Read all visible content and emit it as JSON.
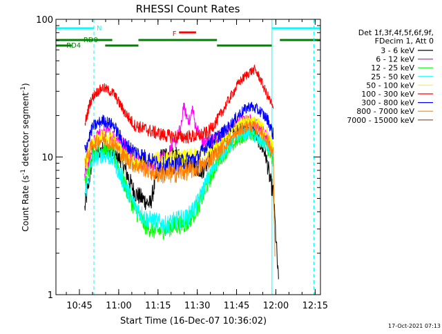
{
  "chart_data": {
    "type": "line",
    "title": "RHESSI Count Rates",
    "xlabel": "Start Time (16-Dec-07 10:36:02)",
    "ylabel": "Count Rate (s⁻¹ detector segment⁻¹)",
    "ylabel_parts": [
      "Count Rate (s",
      "-1",
      " detector segment",
      "-1",
      ")"
    ],
    "yscale": "log",
    "ylim": [
      1,
      100
    ],
    "xlim_minutes": [
      0,
      101
    ],
    "x_ticks": [
      {
        "label": "10:45",
        "minutes": 8.97
      },
      {
        "label": "11:00",
        "minutes": 23.97
      },
      {
        "label": "11:15",
        "minutes": 38.97
      },
      {
        "label": "11:30",
        "minutes": 53.97
      },
      {
        "label": "11:45",
        "minutes": 68.97
      },
      {
        "label": "12:00",
        "minutes": 83.97
      },
      {
        "label": "12:15",
        "minutes": 98.97
      }
    ],
    "y_ticks": [
      {
        "label": "1",
        "value": 1
      },
      {
        "label": "10",
        "value": 10
      },
      {
        "label": "100",
        "value": 100
      }
    ],
    "legend_header": [
      "Det 1f,3f,4f,5f,6f,9f,",
      "FDecim 1, Att 0"
    ],
    "legend_position": "right",
    "timestamp": "17-Oct-2021 07:13",
    "series": [
      {
        "name": "3 - 6 keV",
        "color": "#000000",
        "points": [
          [
            11,
            4.2
          ],
          [
            14,
            10
          ],
          [
            18,
            11.5
          ],
          [
            25,
            9.5
          ],
          [
            30,
            5.5
          ],
          [
            36,
            4.5
          ],
          [
            40,
            10
          ],
          [
            44,
            11
          ],
          [
            50,
            9
          ],
          [
            56,
            8
          ],
          [
            61,
            12
          ],
          [
            66,
            15
          ],
          [
            70,
            16.5
          ],
          [
            75,
            16
          ],
          [
            80,
            10.5
          ],
          [
            82,
            6.5
          ],
          [
            83,
            5.5
          ],
          [
            85,
            1.2
          ]
        ]
      },
      {
        "name": "6 - 12 keV",
        "color": "#ff00ff",
        "points": [
          [
            11,
            7.5
          ],
          [
            15,
            13.8
          ],
          [
            19,
            15.5
          ],
          [
            25,
            13
          ],
          [
            31,
            9.6
          ],
          [
            37,
            8.8
          ],
          [
            40,
            9.5
          ],
          [
            43,
            10.5
          ],
          [
            46,
            13.5
          ],
          [
            48,
            17
          ],
          [
            48.6,
            24
          ],
          [
            49.8,
            20
          ],
          [
            51.2,
            18
          ],
          [
            52.1,
            23
          ],
          [
            53.2,
            17
          ],
          [
            56,
            12.7
          ],
          [
            60,
            13.2
          ],
          [
            65,
            15.5
          ],
          [
            70,
            18
          ],
          [
            74,
            18.5
          ],
          [
            78,
            16.5
          ],
          [
            81,
            13.5
          ],
          [
            83,
            10.8
          ]
        ]
      },
      {
        "name": "12 - 25 keV",
        "color": "#00ff00",
        "points": [
          [
            11,
            6
          ],
          [
            14,
            10.5
          ],
          [
            18,
            11.5
          ],
          [
            22,
            10.5
          ],
          [
            26,
            6.5
          ],
          [
            30,
            4.2
          ],
          [
            34,
            3.2
          ],
          [
            38,
            2.9
          ],
          [
            42,
            3
          ],
          [
            46,
            3.2
          ],
          [
            50,
            3.3
          ],
          [
            54,
            4.3
          ],
          [
            58,
            6.5
          ],
          [
            62,
            9.5
          ],
          [
            66,
            11.5
          ],
          [
            70,
            13.5
          ],
          [
            74,
            15
          ],
          [
            78,
            13.5
          ],
          [
            81,
            11.5
          ],
          [
            83,
            9
          ]
        ]
      },
      {
        "name": "25 - 50 keV",
        "color": "#00ffff",
        "points": [
          [
            11,
            5.3
          ],
          [
            14,
            9.5
          ],
          [
            18,
            10.5
          ],
          [
            22,
            9.5
          ],
          [
            26,
            6.5
          ],
          [
            30,
            4.5
          ],
          [
            34,
            3.6
          ],
          [
            38,
            3.4
          ],
          [
            42,
            3.2
          ],
          [
            46,
            3.5
          ],
          [
            50,
            3.6
          ],
          [
            54,
            4.6
          ],
          [
            58,
            6.9
          ],
          [
            62,
            10
          ],
          [
            66,
            12
          ],
          [
            70,
            14.5
          ],
          [
            74,
            15.2
          ],
          [
            78,
            13
          ],
          [
            81,
            12
          ],
          [
            83,
            10
          ]
        ]
      },
      {
        "name": "50 - 100 keV",
        "color": "#ffff00",
        "points": [
          [
            11,
            8.5
          ],
          [
            14,
            12.5
          ],
          [
            18,
            14.5
          ],
          [
            22,
            13.5
          ],
          [
            26,
            10
          ],
          [
            30,
            9.2
          ],
          [
            34,
            9.3
          ],
          [
            38,
            9.5
          ],
          [
            42,
            9.6
          ],
          [
            46,
            9.8
          ],
          [
            50,
            10
          ],
          [
            54,
            10.3
          ],
          [
            58,
            11
          ],
          [
            62,
            12.5
          ],
          [
            66,
            15
          ],
          [
            70,
            17.5
          ],
          [
            74,
            18.8
          ],
          [
            78,
            17
          ],
          [
            81,
            14.5
          ],
          [
            83,
            11.5
          ]
        ]
      },
      {
        "name": "100 - 300 keV",
        "color": "#ff0000",
        "points": [
          [
            11,
            17
          ],
          [
            13,
            25
          ],
          [
            15,
            29
          ],
          [
            18,
            32
          ],
          [
            22,
            29
          ],
          [
            26,
            21.5
          ],
          [
            30,
            17
          ],
          [
            34,
            16
          ],
          [
            38,
            15
          ],
          [
            42,
            14.3
          ],
          [
            46,
            14
          ],
          [
            50,
            14
          ],
          [
            54,
            14.2
          ],
          [
            58,
            15
          ],
          [
            62,
            19
          ],
          [
            66,
            26
          ],
          [
            70,
            35
          ],
          [
            74,
            41.5
          ],
          [
            76,
            43
          ],
          [
            78,
            37
          ],
          [
            80,
            30
          ],
          [
            82,
            25
          ],
          [
            83,
            22
          ]
        ]
      },
      {
        "name": "300 - 800 keV",
        "color": "#0000ff",
        "points": [
          [
            11,
            11
          ],
          [
            14,
            16.5
          ],
          [
            18,
            18.5
          ],
          [
            22,
            17
          ],
          [
            26,
            12.5
          ],
          [
            30,
            11
          ],
          [
            34,
            10
          ],
          [
            38,
            9
          ],
          [
            42,
            8.5
          ],
          [
            46,
            8.8
          ],
          [
            50,
            9.5
          ],
          [
            54,
            9.8
          ],
          [
            58,
            12.5
          ],
          [
            62,
            14.2
          ],
          [
            66,
            16.5
          ],
          [
            70,
            20.5
          ],
          [
            74,
            23.5
          ],
          [
            78,
            21.5
          ],
          [
            81,
            18.5
          ],
          [
            83,
            14.5
          ]
        ]
      },
      {
        "name": "800 - 7000 keV",
        "color": "#ff8000",
        "points": [
          [
            11,
            9.2
          ],
          [
            14,
            12.5
          ],
          [
            18,
            13.5
          ],
          [
            22,
            12.5
          ],
          [
            26,
            10
          ],
          [
            30,
            8.8
          ],
          [
            34,
            8.3
          ],
          [
            38,
            7.6
          ],
          [
            42,
            7.4
          ],
          [
            46,
            7.6
          ],
          [
            50,
            7.9
          ],
          [
            54,
            8.3
          ],
          [
            58,
            9.2
          ],
          [
            62,
            11
          ],
          [
            66,
            13
          ],
          [
            70,
            15.5
          ],
          [
            74,
            17
          ],
          [
            78,
            15.5
          ],
          [
            81,
            13
          ],
          [
            83,
            10.5
          ],
          [
            83.6,
            1.7
          ]
        ]
      },
      {
        "name": "7000 - 15000 keV",
        "color": "#8b4513",
        "points": []
      }
    ],
    "annotations": {
      "N": {
        "label": "N",
        "color": "#00ffff",
        "bars": [
          [
            0,
            14.5
          ],
          [
            82.5,
            101
          ]
        ],
        "dashed_at": [
          14.5,
          98.5
        ],
        "solid_at": [
          0,
          82.5
        ]
      },
      "RD0": {
        "label": "RD0",
        "color": "#008000",
        "bars": [
          [
            0,
            21.5
          ],
          [
            31.5,
            61.5
          ],
          [
            85.5,
            101
          ]
        ]
      },
      "RD4": {
        "label": "RD4",
        "color": "#008000",
        "bars": [
          [
            0,
            6
          ],
          [
            18.8,
            31.5
          ],
          [
            61.5,
            82.5
          ]
        ]
      },
      "F": {
        "label": "F",
        "color": "#ff0000",
        "bars": [
          [
            47,
            53.5
          ]
        ]
      }
    }
  }
}
